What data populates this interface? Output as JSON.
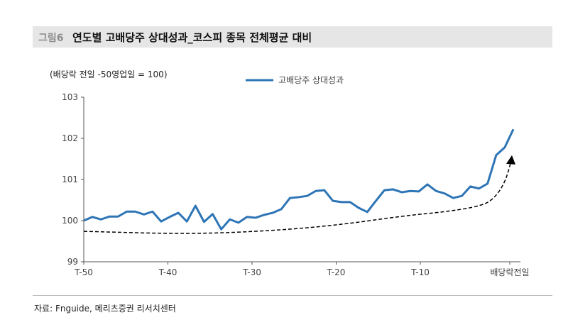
{
  "header": {
    "figure_no": "그림6",
    "title": "연도별 고배당주 상대성과_코스피 종목 전체평균 대비"
  },
  "source": "자료: Fnguide, 메리츠증권 리서치센터",
  "chart_data": {
    "type": "line",
    "ylabel": "(배당락 전일 -50영업일 = 100)",
    "ylim": [
      99,
      103
    ],
    "yticks": [
      "99",
      "100",
      "101",
      "102",
      "103"
    ],
    "xticks": [
      "T-50",
      "T-40",
      "T-30",
      "T-20",
      "T-10",
      "배당락전일"
    ],
    "legend": {
      "position": "top-center",
      "label": "고배당주 상대성과"
    },
    "series": [
      {
        "name": "고배당주 상대성과",
        "color": "#2e75b6",
        "values": [
          100.0,
          100.09,
          100.03,
          100.1,
          100.1,
          100.22,
          100.22,
          100.15,
          100.22,
          99.98,
          100.09,
          100.19,
          99.98,
          100.36,
          99.97,
          100.16,
          99.79,
          100.03,
          99.95,
          100.09,
          100.07,
          100.14,
          100.19,
          100.28,
          100.55,
          100.57,
          100.6,
          100.72,
          100.74,
          100.48,
          100.45,
          100.45,
          100.31,
          100.21,
          100.48,
          100.74,
          100.76,
          100.69,
          100.72,
          100.71,
          100.88,
          100.72,
          100.66,
          100.55,
          100.6,
          100.83,
          100.78,
          100.9,
          101.59,
          101.78,
          102.22
        ]
      }
    ],
    "trend": {
      "style": "dashed-arrow",
      "color": "#000000",
      "points": [
        [
          0,
          99.74
        ],
        [
          0.25,
          99.67
        ],
        [
          0.45,
          99.76
        ],
        [
          0.6,
          99.9
        ],
        [
          0.75,
          100.12
        ],
        [
          0.85,
          100.22
        ],
        [
          0.93,
          100.36
        ],
        [
          0.96,
          100.55
        ],
        [
          0.985,
          100.95
        ],
        [
          1.0,
          101.52
        ]
      ]
    }
  }
}
